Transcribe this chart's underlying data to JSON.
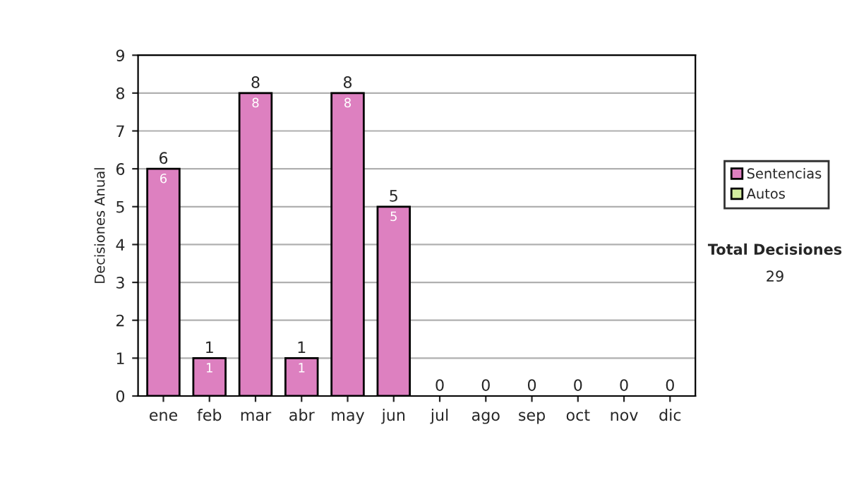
{
  "chart_data": {
    "type": "bar",
    "stacked": true,
    "ylabel": "Decisiones Anual",
    "categories": [
      "ene",
      "feb",
      "mar",
      "abr",
      "may",
      "jun",
      "jul",
      "ago",
      "sep",
      "oct",
      "nov",
      "dic"
    ],
    "series": [
      {
        "name": "Sentencias",
        "color": "#dd80c0",
        "values": [
          6,
          1,
          8,
          1,
          8,
          5,
          0,
          0,
          0,
          0,
          0,
          0
        ],
        "value_labels": [
          "6",
          "1",
          "8",
          "1",
          "8",
          "5",
          null,
          null,
          null,
          null,
          null,
          null
        ]
      },
      {
        "name": "Autos",
        "color": "#d4eca0",
        "values": [
          0,
          0,
          0,
          0,
          0,
          0,
          0,
          0,
          0,
          0,
          0,
          0
        ]
      }
    ],
    "totals": [
      "6",
      "1",
      "8",
      "1",
      "8",
      "5",
      "0",
      "0",
      "0",
      "0",
      "0",
      "0"
    ],
    "ylim": [
      0,
      9
    ],
    "yticks": [
      0,
      1,
      2,
      3,
      4,
      5,
      6,
      7,
      8,
      9
    ],
    "grid": "y",
    "legend": "right",
    "annotations": [
      "Total Decisiones",
      "29"
    ]
  }
}
